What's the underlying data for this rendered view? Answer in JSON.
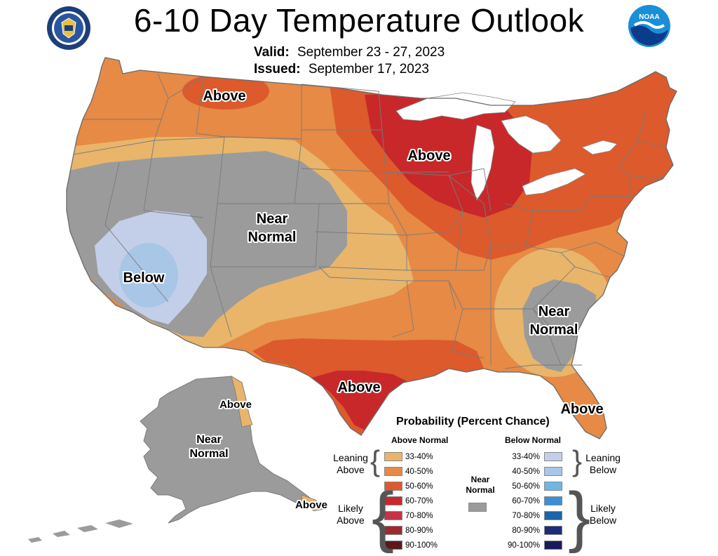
{
  "title": "6-10 Day Temperature Outlook",
  "valid": {
    "label": "Valid:",
    "value": "September 23 - 27, 2023"
  },
  "issued": {
    "label": "Issued:",
    "value": "September 17, 2023"
  },
  "logos": {
    "left": "department-of-commerce-seal",
    "right": "noaa-logo",
    "noaa_text": "NOAA"
  },
  "map_labels": {
    "above_northwest": "Above",
    "above_midwest": "Above",
    "near_normal_west_1": "Near",
    "near_normal_west_2": "Normal",
    "below_southwest": "Below",
    "near_normal_southeast_1": "Near",
    "near_normal_southeast_2": "Normal",
    "above_texas": "Above",
    "above_florida": "Above",
    "above_alaska_east": "Above",
    "near_normal_alaska_1": "Near",
    "near_normal_alaska_2": "Normal",
    "above_alaska_south": "Above"
  },
  "legend": {
    "title": "Probability (Percent Chance)",
    "above_header": "Above Normal",
    "below_header": "Below Normal",
    "near_label_1": "Near",
    "near_label_2": "Normal",
    "leaning_above_1": "Leaning",
    "leaning_above_2": "Above",
    "likely_above_1": "Likely",
    "likely_above_2": "Above",
    "leaning_below_1": "Leaning",
    "leaning_below_2": "Below",
    "likely_below_1": "Likely",
    "likely_below_2": "Below",
    "above": [
      {
        "range": "33-40%",
        "color": "#e8b56a"
      },
      {
        "range": "40-50%",
        "color": "#e68a45"
      },
      {
        "range": "50-60%",
        "color": "#dc5a2c"
      },
      {
        "range": "60-70%",
        "color": "#c8282a"
      },
      {
        "range": "70-80%",
        "color": "#c83246"
      },
      {
        "range": "80-90%",
        "color": "#a02830"
      },
      {
        "range": "90-100%",
        "color": "#5a1a1a"
      }
    ],
    "below": [
      {
        "range": "33-40%",
        "color": "#c3cfe8"
      },
      {
        "range": "40-50%",
        "color": "#a8c6e6"
      },
      {
        "range": "50-60%",
        "color": "#6fb6e4"
      },
      {
        "range": "60-70%",
        "color": "#3a90d6"
      },
      {
        "range": "70-80%",
        "color": "#1e64a6"
      },
      {
        "range": "80-90%",
        "color": "#1e2a7a"
      },
      {
        "range": "90-100%",
        "color": "#1a1a5a"
      }
    ],
    "near_color": "#9b9b9b"
  },
  "colors": {
    "background": "#ffffff",
    "lean_above": "#e8b56a",
    "above_40": "#e68a45",
    "above_50": "#dc5a2c",
    "above_60": "#c8282a",
    "near": "#9b9b9b",
    "lean_below": "#c3cfe8",
    "below_40": "#a8c6e6",
    "border": "#7a7a7a",
    "lakes": "#ffffff"
  }
}
